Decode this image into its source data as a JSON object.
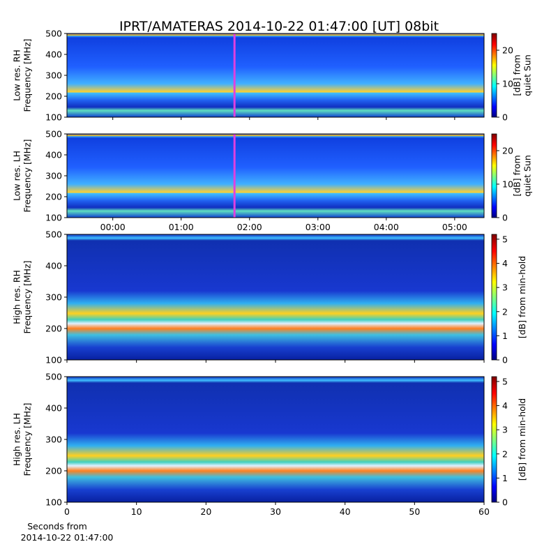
{
  "chart_data": [
    {
      "type": "spectrogram",
      "title": "IPRT/AMATERAS 2014-10-22 01:47:00 [UT]   08bit",
      "ylabel": [
        "Low res. RH",
        "Frequency [MHz]"
      ],
      "ylim": [
        100,
        500
      ],
      "yticks": [
        100,
        200,
        300,
        400,
        500
      ],
      "xlim": [
        -0.67,
        5.43
      ],
      "xticks": [
        {
          "value": 0,
          "label": "00:00"
        },
        {
          "value": 1,
          "label": "01:00"
        },
        {
          "value": 2,
          "label": "02:00"
        },
        {
          "value": 3,
          "label": "03:00"
        },
        {
          "value": 4,
          "label": "04:00"
        },
        {
          "value": 5,
          "label": "05:00"
        }
      ],
      "xticklabels": false,
      "marker_x": 1.78,
      "marker_color": "#e040e0",
      "colorbar": {
        "label": [
          "[dB] from",
          "quiet Sun"
        ],
        "clim": [
          0,
          25
        ],
        "ticks": [
          0,
          10,
          20
        ]
      }
    },
    {
      "type": "spectrogram",
      "ylabel": [
        "Low res. LH",
        "Frequency [MHz]"
      ],
      "ylim": [
        100,
        500
      ],
      "yticks": [
        100,
        200,
        300,
        400,
        500
      ],
      "xlim": [
        -0.67,
        5.43
      ],
      "xticks": [
        {
          "value": 0,
          "label": "00:00"
        },
        {
          "value": 1,
          "label": "01:00"
        },
        {
          "value": 2,
          "label": "02:00"
        },
        {
          "value": 3,
          "label": "03:00"
        },
        {
          "value": 4,
          "label": "04:00"
        },
        {
          "value": 5,
          "label": "05:00"
        }
      ],
      "xticklabels": true,
      "marker_x": 1.78,
      "marker_color": "#e040e0",
      "colorbar": {
        "label": [
          "[dB] from",
          "quiet Sun"
        ],
        "clim": [
          0,
          25
        ],
        "ticks": [
          0,
          10,
          20
        ]
      }
    },
    {
      "type": "spectrogram",
      "ylabel": [
        "High res. RH",
        "Frequency [MHz]"
      ],
      "ylim": [
        100,
        500
      ],
      "yticks": [
        100,
        200,
        300,
        400,
        500
      ],
      "xlim": [
        0,
        60
      ],
      "xticks": [
        0,
        10,
        20,
        30,
        40,
        50,
        60
      ],
      "xticklabels": false,
      "colorbar": {
        "label": [
          "[dB] from min-hold"
        ],
        "clim": [
          0,
          5.2
        ],
        "ticks": [
          0,
          1,
          2,
          3,
          4,
          5
        ]
      }
    },
    {
      "type": "spectrogram",
      "ylabel": [
        "High res. LH",
        "Frequency [MHz]"
      ],
      "ylim": [
        100,
        500
      ],
      "yticks": [
        100,
        200,
        300,
        400,
        500
      ],
      "xlim": [
        0,
        60
      ],
      "xticks": [
        0,
        10,
        20,
        30,
        40,
        50,
        60
      ],
      "xticklabels": true,
      "xlabel": [
        "Seconds from",
        "2014-10-22 01:47:00"
      ],
      "colorbar": {
        "label": [
          "[dB] from min-hold"
        ],
        "clim": [
          0,
          5.2
        ],
        "ticks": [
          0,
          1,
          2,
          3,
          4,
          5
        ]
      }
    }
  ]
}
